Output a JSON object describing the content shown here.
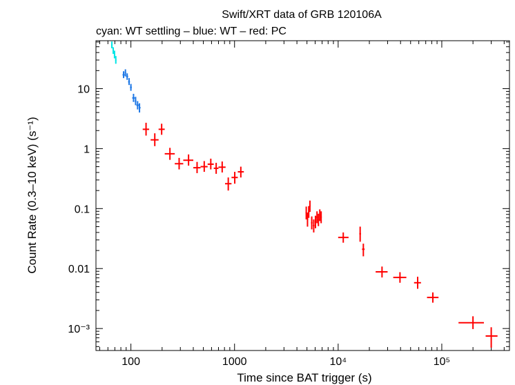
{
  "chart_data": {
    "type": "scatter",
    "title": "Swift/XRT data of GRB 120106A",
    "subtitle": "cyan: WT settling – blue: WT – red: PC",
    "xlabel": "Time since BAT trigger (s)",
    "ylabel": "Count Rate (0.3–10 keV) (s⁻¹)",
    "xscale": "log",
    "yscale": "log",
    "xlim": [
      46,
      450000
    ],
    "ylim": [
      0.00043,
      63
    ],
    "xticks": [
      {
        "value": 100,
        "label": "100"
      },
      {
        "value": 1000,
        "label": "1000"
      },
      {
        "value": 10000,
        "label": "10⁴"
      },
      {
        "value": 100000,
        "label": "10⁵"
      }
    ],
    "yticks": [
      {
        "value": 0.001,
        "label": "10⁻³"
      },
      {
        "value": 0.01,
        "label": "0.01"
      },
      {
        "value": 0.1,
        "label": "0.1"
      },
      {
        "value": 1,
        "label": "1"
      },
      {
        "value": 10,
        "label": "10"
      }
    ],
    "series": [
      {
        "name": "WT settling",
        "color": "#00e5e5",
        "points": [
          {
            "t": 65.5,
            "t0": 64.5,
            "t1": 66.5,
            "r": 53,
            "r0": 47,
            "r1": 61
          },
          {
            "t": 67.5,
            "t0": 66.5,
            "t1": 68.5,
            "r": 43,
            "r0": 38,
            "r1": 49
          },
          {
            "t": 69.5,
            "t0": 68.5,
            "t1": 70.5,
            "r": 37,
            "r0": 32,
            "r1": 43
          },
          {
            "t": 71.5,
            "t0": 70.5,
            "t1": 72.5,
            "r": 30,
            "r0": 26,
            "r1": 35
          }
        ]
      },
      {
        "name": "WT",
        "color": "#1e78e6",
        "points": [
          {
            "t": 85,
            "t0": 83,
            "t1": 87,
            "r": 17,
            "r0": 15,
            "r1": 19.5
          },
          {
            "t": 88.5,
            "t0": 87,
            "t1": 90,
            "r": 18.5,
            "r0": 16,
            "r1": 21
          },
          {
            "t": 92,
            "t0": 90,
            "t1": 94,
            "r": 16,
            "r0": 14,
            "r1": 18
          },
          {
            "t": 96,
            "t0": 94,
            "t1": 98,
            "r": 13,
            "r0": 11.5,
            "r1": 15
          },
          {
            "t": 100,
            "t0": 98,
            "t1": 102,
            "r": 10.5,
            "r0": 9.2,
            "r1": 12
          },
          {
            "t": 106,
            "t0": 103,
            "t1": 109,
            "r": 7,
            "r0": 6,
            "r1": 8.2
          },
          {
            "t": 111,
            "t0": 109,
            "t1": 113,
            "r": 6.2,
            "r0": 5.3,
            "r1": 7.3
          },
          {
            "t": 116,
            "t0": 113,
            "t1": 119,
            "r": 5.3,
            "r0": 4.5,
            "r1": 6.2
          },
          {
            "t": 121,
            "t0": 119,
            "t1": 124,
            "r": 4.8,
            "r0": 4,
            "r1": 5.7
          }
        ]
      },
      {
        "name": "PC",
        "color": "#ff0000",
        "points": [
          {
            "t": 140,
            "t0": 130,
            "t1": 150,
            "r": 2.1,
            "r0": 1.65,
            "r1": 2.7
          },
          {
            "t": 170,
            "t0": 155,
            "t1": 185,
            "r": 1.4,
            "r0": 1.1,
            "r1": 1.8
          },
          {
            "t": 198,
            "t0": 185,
            "t1": 212,
            "r": 2.1,
            "r0": 1.7,
            "r1": 2.6
          },
          {
            "t": 238,
            "t0": 212,
            "t1": 265,
            "r": 0.82,
            "r0": 0.65,
            "r1": 1.03
          },
          {
            "t": 292,
            "t0": 265,
            "t1": 320,
            "r": 0.56,
            "r0": 0.45,
            "r1": 0.7
          },
          {
            "t": 360,
            "t0": 320,
            "t1": 400,
            "r": 0.64,
            "r0": 0.52,
            "r1": 0.8
          },
          {
            "t": 435,
            "t0": 400,
            "t1": 470,
            "r": 0.48,
            "r0": 0.39,
            "r1": 0.6
          },
          {
            "t": 510,
            "t0": 470,
            "t1": 550,
            "r": 0.5,
            "r0": 0.41,
            "r1": 0.62
          },
          {
            "t": 590,
            "t0": 550,
            "t1": 630,
            "r": 0.55,
            "r0": 0.45,
            "r1": 0.68
          },
          {
            "t": 665,
            "t0": 630,
            "t1": 700,
            "r": 0.47,
            "r0": 0.38,
            "r1": 0.58
          },
          {
            "t": 760,
            "t0": 700,
            "t1": 820,
            "r": 0.49,
            "r0": 0.4,
            "r1": 0.61
          },
          {
            "t": 870,
            "t0": 810,
            "t1": 935,
            "r": 0.26,
            "r0": 0.2,
            "r1": 0.33
          },
          {
            "t": 1005,
            "t0": 935,
            "t1": 1075,
            "r": 0.33,
            "r0": 0.26,
            "r1": 0.41
          },
          {
            "t": 1150,
            "t0": 1075,
            "t1": 1230,
            "r": 0.41,
            "r0": 0.33,
            "r1": 0.5
          },
          {
            "t": 4920,
            "t0": 4850,
            "t1": 4990,
            "r": 0.085,
            "r0": 0.066,
            "r1": 0.108
          },
          {
            "t": 5060,
            "t0": 4990,
            "t1": 5130,
            "r": 0.066,
            "r0": 0.05,
            "r1": 0.086
          },
          {
            "t": 5200,
            "t0": 5130,
            "t1": 5270,
            "r": 0.088,
            "r0": 0.07,
            "r1": 0.11
          },
          {
            "t": 5340,
            "t0": 5270,
            "t1": 5410,
            "r": 0.11,
            "r0": 0.088,
            "r1": 0.136
          },
          {
            "t": 5560,
            "t0": 5460,
            "t1": 5660,
            "r": 0.058,
            "r0": 0.045,
            "r1": 0.074
          },
          {
            "t": 5810,
            "t0": 5700,
            "t1": 5920,
            "r": 0.052,
            "r0": 0.04,
            "r1": 0.066
          },
          {
            "t": 6040,
            "t0": 5940,
            "t1": 6140,
            "r": 0.06,
            "r0": 0.047,
            "r1": 0.076
          },
          {
            "t": 6250,
            "t0": 6150,
            "t1": 6350,
            "r": 0.072,
            "r0": 0.057,
            "r1": 0.09
          },
          {
            "t": 6450,
            "t0": 6350,
            "t1": 6550,
            "r": 0.065,
            "r0": 0.051,
            "r1": 0.082
          },
          {
            "t": 6650,
            "t0": 6550,
            "t1": 6750,
            "r": 0.078,
            "r0": 0.062,
            "r1": 0.097
          },
          {
            "t": 6850,
            "t0": 6750,
            "t1": 6950,
            "r": 0.072,
            "r0": 0.057,
            "r1": 0.09
          },
          {
            "t": 11200,
            "t0": 10000,
            "t1": 12600,
            "r": 0.033,
            "r0": 0.027,
            "r1": 0.04
          },
          {
            "t": 16300,
            "t0": 16000,
            "t1": 16600,
            "r": 0.038,
            "r0": 0.028,
            "r1": 0.05
          },
          {
            "t": 17500,
            "t0": 17000,
            "t1": 18000,
            "r": 0.021,
            "r0": 0.016,
            "r1": 0.026
          },
          {
            "t": 26500,
            "t0": 23000,
            "t1": 30000,
            "r": 0.0088,
            "r0": 0.0071,
            "r1": 0.0108
          },
          {
            "t": 39500,
            "t0": 34000,
            "t1": 45500,
            "r": 0.0071,
            "r0": 0.0058,
            "r1": 0.0087
          },
          {
            "t": 58500,
            "t0": 54000,
            "t1": 63000,
            "r": 0.0058,
            "r0": 0.0046,
            "r1": 0.0073
          },
          {
            "t": 82000,
            "t0": 72000,
            "t1": 93000,
            "r": 0.0033,
            "r0": 0.0027,
            "r1": 0.004
          },
          {
            "t": 200000,
            "t0": 145000,
            "t1": 255000,
            "r": 0.00125,
            "r0": 0.00098,
            "r1": 0.0016
          },
          {
            "t": 300000,
            "t0": 265000,
            "t1": 345000,
            "r": 0.00075,
            "r0": 0.00048,
            "r1": 0.00105
          }
        ]
      }
    ]
  }
}
